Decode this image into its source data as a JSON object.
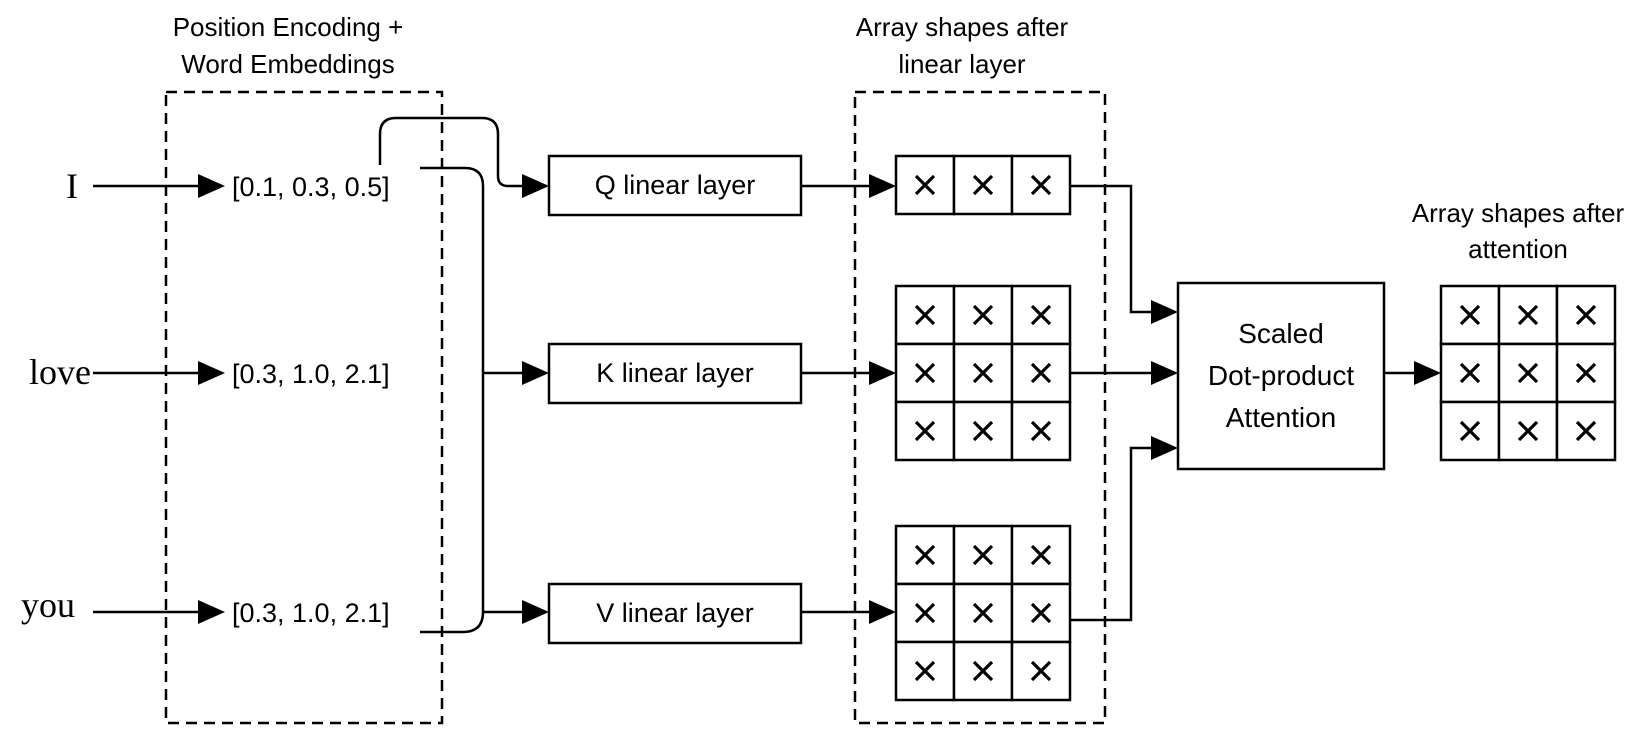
{
  "header": {
    "embeddings_title_line1": "Position Encoding +",
    "embeddings_title_line2": "Word Embeddings",
    "linear_shapes_title_line1": "Array shapes after",
    "linear_shapes_title_line2": "linear layer",
    "attention_shapes_title_line1": "Array shapes after",
    "attention_shapes_title_line2": "attention"
  },
  "words": [
    "I",
    "love",
    "you"
  ],
  "embeddings": [
    "[0.1, 0.3, 0.5]",
    "[0.3, 1.0, 2.1]",
    "[0.3, 1.0, 2.1]"
  ],
  "linear_layers": [
    "Q linear layer",
    "K linear layer",
    "V linear layer"
  ],
  "attention": {
    "line1": "Scaled",
    "line2": "Dot-product",
    "line3": "Attention"
  },
  "matrices": {
    "q": {
      "rows": 1,
      "cols": 3
    },
    "k": {
      "rows": 3,
      "cols": 3
    },
    "v": {
      "rows": 3,
      "cols": 3
    },
    "output": {
      "rows": 3,
      "cols": 3
    }
  },
  "cell_symbol": "×",
  "icons": {
    "arrow": "triangle-arrowhead",
    "cell_mark": "cross-icon"
  }
}
